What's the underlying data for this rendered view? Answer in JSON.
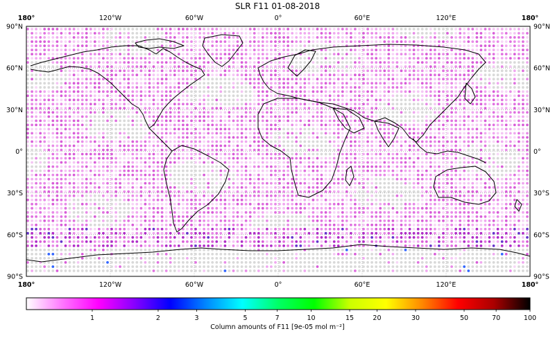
{
  "title": "SLR F11 01-08-2018",
  "map": {
    "projection": "equirectangular",
    "lon_range": [
      -180,
      180
    ],
    "lat_range": [
      -90,
      90
    ],
    "gridlines": "dotted",
    "top_lon_labels": [
      "180°",
      "120°W",
      "60°W",
      "0°",
      "60°E",
      "120°E",
      "180°"
    ],
    "bottom_lon_labels": [
      "180°",
      "120°W",
      "60°W",
      "0°",
      "60°E",
      "120°E",
      "180°"
    ],
    "left_lat_labels": [
      "90°N",
      "60°N",
      "30°N",
      "0°",
      "30°S",
      "60°S",
      "90°S"
    ],
    "right_lat_labels": [
      "90°N",
      "60°N",
      "30°N",
      "0°",
      "30°S",
      "60°S",
      "90°S"
    ],
    "background_dot_color": "#d9d9d9",
    "coastline_color": "#000000"
  },
  "colorbar": {
    "ticks": [
      "1",
      "2",
      "3",
      "5",
      "7",
      "10",
      "15",
      "20",
      "30",
      "50",
      "70",
      "100"
    ],
    "label": "Column amounts of F11 [9e-05 mol m⁻²]",
    "scale": "log",
    "range": [
      0.5,
      100
    ],
    "colors": [
      "#ffffff",
      "#ff77ff",
      "#ff00ff",
      "#8800ff",
      "#0000ff",
      "#0088ff",
      "#00ffff",
      "#00ff66",
      "#00ff00",
      "#ccff00",
      "#ffff00",
      "#ff8800",
      "#ff0000",
      "#aa0000",
      "#000000"
    ]
  }
}
